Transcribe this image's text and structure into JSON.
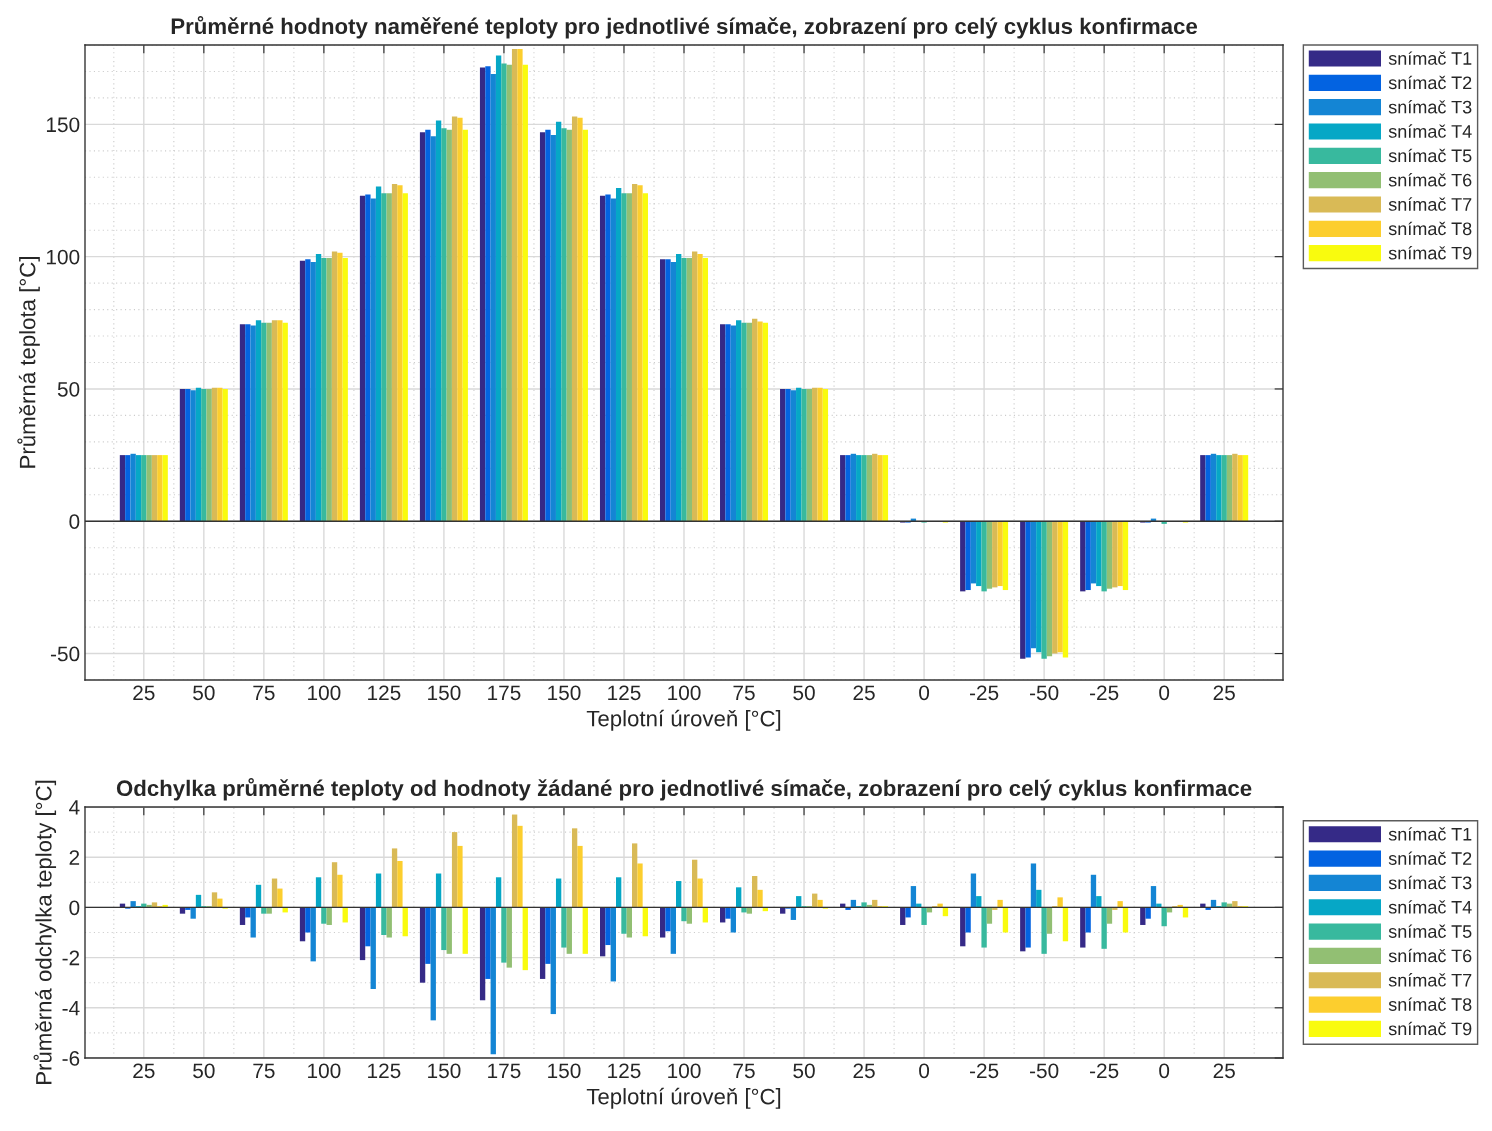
{
  "chart_data": [
    {
      "type": "bar",
      "title": "Průměrné hodnoty naměřené teploty pro jednotlivé símače, zobrazení pro celý cyklus konfirmace",
      "xlabel": "Teplotní úroveň [°C]",
      "ylabel": "Průměrná teplota [°C]",
      "categories": [
        "25",
        "50",
        "75",
        "100",
        "125",
        "150",
        "175",
        "150",
        "125",
        "100",
        "75",
        "50",
        "25",
        "0",
        "-25",
        "-50",
        "-25",
        "0",
        "25"
      ],
      "ylim": [
        -60,
        180
      ],
      "yticks": [
        -50,
        0,
        50,
        100,
        150
      ],
      "grid": true,
      "legend": "top right",
      "series": [
        {
          "name": "snímač T1",
          "color": "#352a87",
          "values": [
            25,
            50,
            74.5,
            98.5,
            123,
            147,
            171.5,
            147,
            123,
            99,
            74.5,
            50,
            25,
            -0.5,
            -26.5,
            -52,
            -26.5,
            -0.5,
            25
          ]
        },
        {
          "name": "snímač T2",
          "color": "#0363e1",
          "values": [
            25,
            50,
            74.5,
            99,
            123.5,
            148,
            172,
            148,
            123.5,
            99,
            74.5,
            50,
            25,
            -0.5,
            -26,
            -51.5,
            -26,
            -0.5,
            25
          ]
        },
        {
          "name": "snímač T3",
          "color": "#1485d4",
          "values": [
            25.5,
            49.5,
            74,
            98,
            122,
            145.5,
            169,
            146,
            122,
            98,
            74,
            49.5,
            25.5,
            1,
            -23.5,
            -48,
            -23.5,
            1,
            25.5
          ]
        },
        {
          "name": "snímač T4",
          "color": "#06a7c6",
          "values": [
            25,
            50.5,
            76,
            101,
            126.5,
            151.5,
            176,
            151,
            126,
            101,
            76,
            50.5,
            25,
            0,
            -24.5,
            -49.5,
            -24.5,
            0,
            25
          ]
        },
        {
          "name": "snímač T5",
          "color": "#38b99e",
          "values": [
            25,
            50,
            75,
            99.5,
            124,
            148.5,
            173,
            148.5,
            124,
            99.5,
            75,
            50,
            25,
            -0.5,
            -26.5,
            -52,
            -26.5,
            -1,
            25
          ]
        },
        {
          "name": "snímač T6",
          "color": "#92bf73",
          "values": [
            25,
            50,
            75,
            99.5,
            124,
            148,
            172.5,
            148,
            124,
            99.5,
            75,
            50,
            25,
            0,
            -25.5,
            -51,
            -25.5,
            0,
            25
          ]
        },
        {
          "name": "snímač T7",
          "color": "#d9ba56",
          "values": [
            25,
            50.5,
            76,
            102,
            127.5,
            153,
            178.5,
            153,
            127.5,
            102,
            76.5,
            50.5,
            25.5,
            0,
            -25,
            -50,
            -25,
            0,
            25.5
          ]
        },
        {
          "name": "snímač T8",
          "color": "#fcce2e",
          "values": [
            25,
            50.5,
            76,
            101.5,
            127,
            152.5,
            178.5,
            152.5,
            127,
            101,
            75.5,
            50.5,
            25,
            0,
            -24.5,
            -49.5,
            -24.5,
            0,
            25
          ]
        },
        {
          "name": "snímač T9",
          "color": "#f9fb0e",
          "values": [
            25,
            50,
            75,
            99.5,
            124,
            148,
            172.5,
            148,
            124,
            99.5,
            75,
            50,
            25,
            -0.5,
            -26,
            -51.5,
            -26,
            -0.5,
            25
          ]
        }
      ]
    },
    {
      "type": "bar",
      "title": "Odchylka průměrné teploty od hodnoty žádané pro jednotlivé símače, zobrazení pro celý cyklus konfirmace",
      "xlabel": "Teplotní úroveň [°C]",
      "ylabel": "Průměrná odchylka teploty [°C]",
      "categories": [
        "25",
        "50",
        "75",
        "100",
        "125",
        "150",
        "175",
        "150",
        "125",
        "100",
        "75",
        "50",
        "25",
        "0",
        "-25",
        "-50",
        "-25",
        "0",
        "25"
      ],
      "ylim": [
        -6,
        4
      ],
      "yticks": [
        -6,
        -4,
        -2,
        0,
        2,
        4
      ],
      "grid": true,
      "legend": "right",
      "series": [
        {
          "name": "snímač T1",
          "color": "#352a87",
          "values": [
            0.15,
            -0.25,
            -0.7,
            -1.35,
            -2.1,
            -3.0,
            -3.7,
            -2.85,
            -1.95,
            -1.2,
            -0.6,
            -0.25,
            0.15,
            -0.7,
            -1.55,
            -1.75,
            -1.6,
            -0.7,
            0.15
          ]
        },
        {
          "name": "snímač T2",
          "color": "#0363e1",
          "values": [
            -0.05,
            -0.1,
            -0.4,
            -1.0,
            -1.55,
            -2.25,
            -2.85,
            -2.25,
            -1.5,
            -0.95,
            -0.45,
            -0.05,
            -0.1,
            -0.4,
            -1.0,
            -1.6,
            -1.0,
            -0.45,
            -0.1
          ]
        },
        {
          "name": "snímač T3",
          "color": "#1485d4",
          "values": [
            0.25,
            -0.45,
            -1.2,
            -2.15,
            -3.25,
            -4.5,
            -5.85,
            -4.25,
            -2.95,
            -1.85,
            -1.0,
            -0.5,
            0.3,
            0.85,
            1.35,
            1.75,
            1.3,
            0.85,
            0.3
          ]
        },
        {
          "name": "snímač T4",
          "color": "#06a7c6",
          "values": [
            0.05,
            0.5,
            0.9,
            1.2,
            1.35,
            1.35,
            1.2,
            1.15,
            1.2,
            1.05,
            0.8,
            0.45,
            0.05,
            0.15,
            0.45,
            0.7,
            0.45,
            0.15,
            0.05
          ]
        },
        {
          "name": "snímač T5",
          "color": "#38b99e",
          "values": [
            0.15,
            0.05,
            -0.25,
            -0.65,
            -1.1,
            -1.7,
            -2.2,
            -1.6,
            -1.05,
            -0.55,
            -0.2,
            0.05,
            0.2,
            -0.7,
            -1.6,
            -1.85,
            -1.65,
            -0.75,
            0.2
          ]
        },
        {
          "name": "snímač T6",
          "color": "#92bf73",
          "values": [
            0.1,
            0.05,
            -0.25,
            -0.7,
            -1.2,
            -1.85,
            -2.4,
            -1.85,
            -1.2,
            -0.65,
            -0.25,
            0.05,
            0.1,
            -0.2,
            -0.65,
            -1.05,
            -0.65,
            -0.2,
            0.15
          ]
        },
        {
          "name": "snímač T7",
          "color": "#d9ba56",
          "values": [
            0.2,
            0.6,
            1.15,
            1.8,
            2.35,
            3.0,
            3.7,
            3.15,
            2.55,
            1.9,
            1.25,
            0.55,
            0.3,
            0.05,
            -0.1,
            0.05,
            -0.1,
            0.05,
            0.25
          ]
        },
        {
          "name": "snímač T8",
          "color": "#fcce2e",
          "values": [
            0.05,
            0.35,
            0.75,
            1.3,
            1.85,
            2.45,
            3.25,
            2.45,
            1.75,
            1.15,
            0.7,
            0.3,
            0.05,
            0.15,
            0.3,
            0.4,
            0.25,
            0.1,
            0.05
          ]
        },
        {
          "name": "snímač T9",
          "color": "#f9fb0e",
          "values": [
            0.1,
            -0.05,
            -0.2,
            -0.6,
            -1.15,
            -1.85,
            -2.5,
            -1.85,
            -1.15,
            -0.6,
            -0.15,
            -0.05,
            0.05,
            -0.35,
            -1.0,
            -1.35,
            -1.0,
            -0.4,
            0.05
          ]
        }
      ]
    }
  ]
}
